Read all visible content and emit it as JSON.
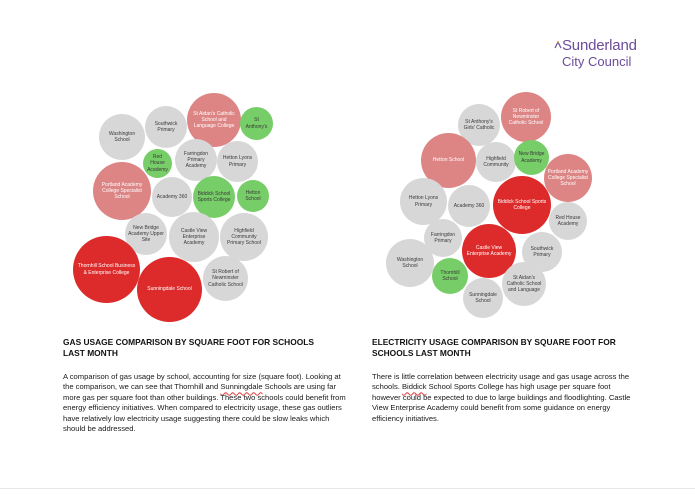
{
  "logo": {
    "line1": "Sunderland",
    "line2": "City Council"
  },
  "colors": {
    "grey": "#d7d7d7",
    "green": "#77cd67",
    "pink": "#dd8585",
    "red": "#dd2b2b",
    "brand": "#6b4c9a"
  },
  "gas": {
    "heading": "GAS USAGE COMPARISON BY SQUARE FOOT FOR SCHOOLS LAST MONTH",
    "paragraph": {
      "p1": "A comparison of gas usage by school, accounting for size (square foot). Looking at the comparison, we can see that Thornhill and ",
      "p2": "Sunningdale",
      "p3": " Schools are using far more gas per square foot than other buildings. These two schools could benefit from energy efficiency initiatives. When compared to electricity usage, these gas outliers have relatively low electricity usage suggesting there could be slow leaks which should be addressed."
    },
    "bubbles": [
      {
        "label": "Washington School"
      },
      {
        "label": "Southwick Primary"
      },
      {
        "label": "St Aidan's Catholic School and Language College"
      },
      {
        "label": "St Anthony's"
      },
      {
        "label": "Red House Academy"
      },
      {
        "label": "Farringdon Primary Academy"
      },
      {
        "label": "Hetton Lyons Primary"
      },
      {
        "label": "Portland Academy College Specialist School"
      },
      {
        "label": "Academy 360"
      },
      {
        "label": "Biddick School Sports College"
      },
      {
        "label": "Hetton School"
      },
      {
        "label": "New Bridge Academy Upper Site"
      },
      {
        "label": "Castle View Enterprise Academy"
      },
      {
        "label": "Highfield Community Primary School"
      },
      {
        "label": "Thornhill School Business & Enterprise College"
      },
      {
        "label": "Sunningdale School"
      },
      {
        "label": "St Robert of Newminster Catholic School"
      }
    ]
  },
  "electricity": {
    "heading": "ELECTRICITY USAGE COMPARISON BY SQUARE FOOT FOR SCHOOLS LAST MONTH",
    "paragraph": {
      "p1": "There is little correlation between electricity usage and gas usage across the schools. ",
      "p2": "Biddick",
      "p3": " School Sports College has high usage per square foot however could be expected to due to large buildings and floodlighting. Castle View Enterprise Academy could benefit from some guidance on energy efficiency initiatives."
    },
    "bubbles": [
      {
        "label": "St Robert of Newminster Catholic School"
      },
      {
        "label": "St Anthony's Girls' Catholic"
      },
      {
        "label": "Hetton School"
      },
      {
        "label": "Highfield Community"
      },
      {
        "label": "New Bridge Academy"
      },
      {
        "label": "Portland Academy College Specialist School"
      },
      {
        "label": "Biddick School Sports College"
      },
      {
        "label": "Hetton Lyons Primary"
      },
      {
        "label": "Academy 360"
      },
      {
        "label": "Red House Academy"
      },
      {
        "label": "Farringdon Primary"
      },
      {
        "label": "Castle View Enterprise Academy"
      },
      {
        "label": "Southwick Primary"
      },
      {
        "label": "Washington School"
      },
      {
        "label": "Thornhill School"
      },
      {
        "label": "St Aidan's Catholic School and Language"
      },
      {
        "label": "Sunningdale School"
      }
    ]
  }
}
